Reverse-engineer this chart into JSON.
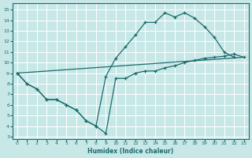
{
  "xlabel": "Humidex (Indice chaleur)",
  "bg_color": "#c8e8e8",
  "grid_color": "#ffffff",
  "line_color": "#1a6b6b",
  "xlim": [
    -0.5,
    23.5
  ],
  "ylim": [
    2.8,
    15.6
  ],
  "xticks": [
    0,
    1,
    2,
    3,
    4,
    5,
    6,
    7,
    8,
    9,
    10,
    11,
    12,
    13,
    14,
    15,
    16,
    17,
    18,
    19,
    20,
    21,
    22,
    23
  ],
  "yticks": [
    3,
    4,
    5,
    6,
    7,
    8,
    9,
    10,
    11,
    12,
    13,
    14,
    15
  ],
  "line1_x": [
    0,
    1,
    2,
    3,
    4,
    5,
    6,
    7,
    8,
    9,
    10,
    11,
    12,
    13,
    14,
    15,
    16,
    17,
    18,
    19,
    20,
    21,
    22,
    23
  ],
  "line1_y": [
    9.0,
    8.0,
    7.5,
    6.5,
    6.5,
    6.0,
    5.5,
    4.5,
    4.0,
    3.3,
    8.5,
    8.5,
    9.0,
    9.2,
    9.2,
    9.5,
    9.7,
    10.0,
    10.2,
    10.4,
    10.5,
    10.6,
    10.8,
    10.5
  ],
  "line2_x": [
    0,
    1,
    2,
    3,
    4,
    5,
    6,
    7,
    8,
    9,
    10,
    11,
    12,
    13,
    14,
    15,
    16,
    17,
    18,
    19,
    20,
    21,
    22
  ],
  "line2_y": [
    9.0,
    8.0,
    7.5,
    6.5,
    6.5,
    6.0,
    5.5,
    4.5,
    4.0,
    8.7,
    10.4,
    11.5,
    12.6,
    13.8,
    13.8,
    14.7,
    14.3,
    14.7,
    14.2,
    13.4,
    12.4,
    11.0,
    10.5
  ],
  "line3_x": [
    0,
    23
  ],
  "line3_y": [
    9.0,
    10.5
  ]
}
